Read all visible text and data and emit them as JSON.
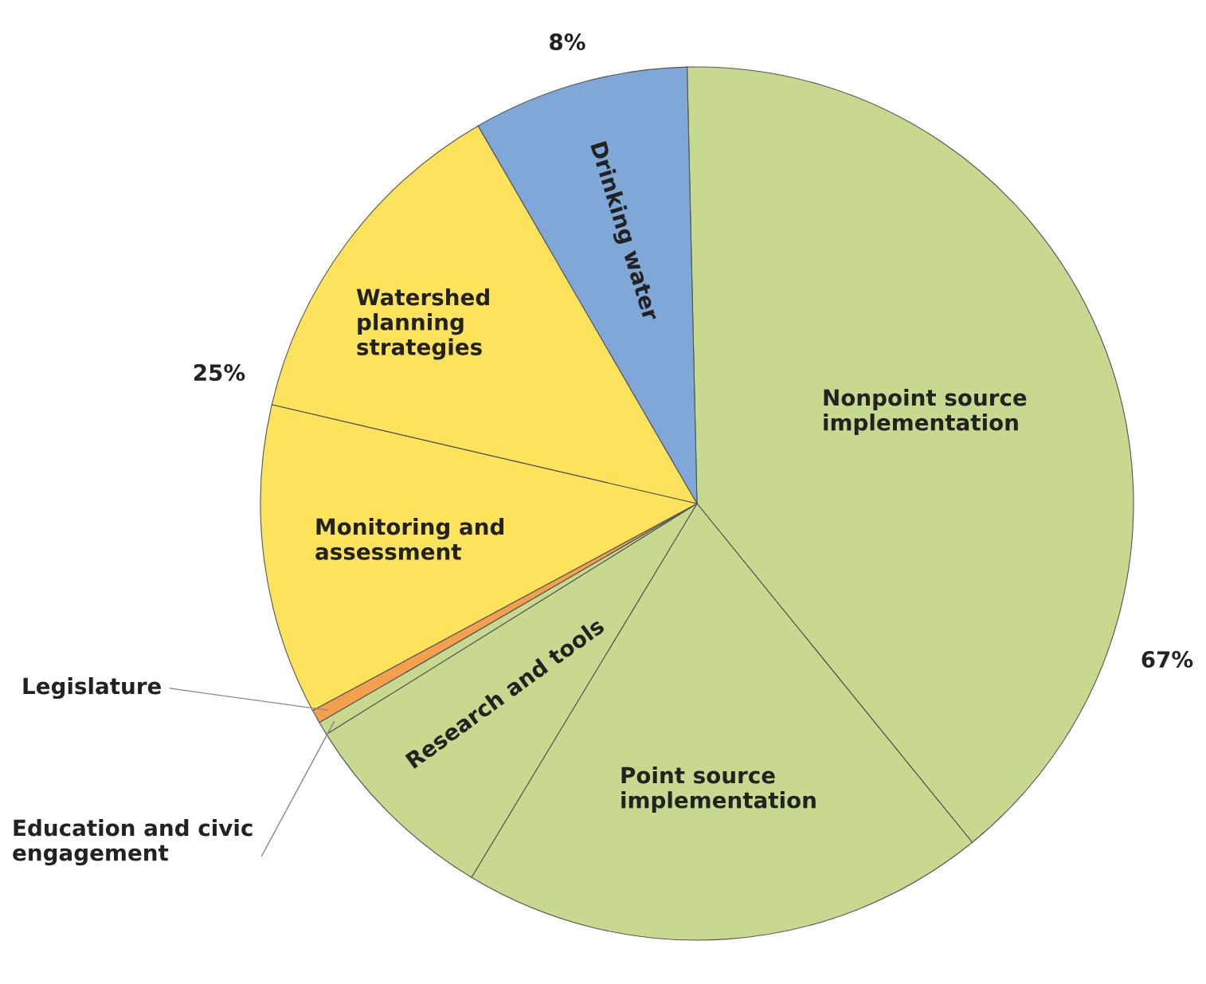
{
  "chart_data": {
    "type": "pie",
    "categories": [
      "Nonpoint source implementation",
      "Point source implementation",
      "Research and tools",
      "Education and civic engagement",
      "Legislature",
      "Monitoring and assessment",
      "Watershed planning strategies",
      "Drinking water"
    ],
    "values": [
      39.5,
      19.5,
      7.5,
      0.5,
      0.5,
      11.5,
      13,
      8
    ],
    "colors": [
      "#c6d98f",
      "#c6d98f",
      "#c6d98f",
      "#c6d98f",
      "#f5a04e",
      "#fde25b",
      "#fde25b",
      "#7fa8d8"
    ],
    "annotations": [
      "8%",
      "25%",
      "67%"
    ]
  }
}
